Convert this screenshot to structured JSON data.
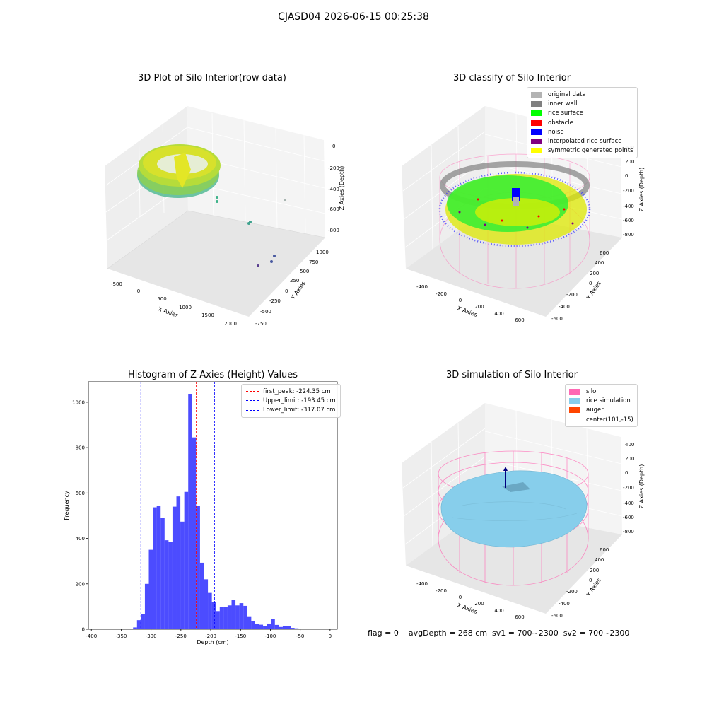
{
  "figure": {
    "suptitle": "CJASD04 2026-06-15 00:25:38",
    "status_line": "flag = 0    avgDepth = 268 cm  sv1 = 700~2300  sv2 = 700~2300"
  },
  "panels": {
    "raw": {
      "title": "3D Plot of Silo Interior(row data)",
      "xlabel": "X Axies",
      "ylabel": "Y Axies",
      "zlabel": "Z Axies (Depth)",
      "xticks": [
        "-500",
        "0",
        "500",
        "1000",
        "1500",
        "2000"
      ],
      "yticks": [
        "-750",
        "-500",
        "-250",
        "0",
        "250",
        "500",
        "750",
        "1000"
      ],
      "zticks": [
        "0",
        "-200",
        "-400",
        "-600",
        "-800"
      ]
    },
    "classify": {
      "title": "3D classify of Silo Interior",
      "xlabel": "X Axies",
      "ylabel": "Y Axies",
      "zlabel": "Z Axies (Depth)",
      "xticks": [
        "-400",
        "-200",
        "0",
        "200",
        "400",
        "600"
      ],
      "yticks": [
        "-600",
        "-400",
        "-200",
        "0",
        "200",
        "400",
        "600"
      ],
      "zticks": [
        "400",
        "200",
        "0",
        "-200",
        "-400",
        "-600",
        "-800"
      ],
      "legend": [
        {
          "label": "original data",
          "color": "#b3b3b3"
        },
        {
          "label": "inner wall",
          "color": "#808080"
        },
        {
          "label": "rice surface",
          "color": "#00ff00"
        },
        {
          "label": "obstacle",
          "color": "#ff0000"
        },
        {
          "label": "noise",
          "color": "#0000ff"
        },
        {
          "label": "interpolated rice surface",
          "color": "#800080"
        },
        {
          "label": "symmetric generated points",
          "color": "#ffff00"
        }
      ]
    },
    "simulation": {
      "title": "3D simulation of Silo Interior",
      "xlabel": "X Axies",
      "ylabel": "Y Axies",
      "zlabel": "Z Axies (Depth)",
      "xticks": [
        "-400",
        "-200",
        "0",
        "200",
        "400",
        "600"
      ],
      "yticks": [
        "-600",
        "-400",
        "-200",
        "0",
        "200",
        "400",
        "600"
      ],
      "zticks": [
        "400",
        "200",
        "0",
        "-200",
        "-400",
        "-600",
        "-800"
      ],
      "legend": [
        {
          "label": "silo",
          "color": "#ff69b4"
        },
        {
          "label": "rice simulation",
          "color": "#87ceeb"
        },
        {
          "label": "auger",
          "color": "#ff4500"
        },
        {
          "label": "center(101,-15)",
          "color": ""
        }
      ]
    }
  },
  "chart_data": {
    "type": "bar",
    "title": "Histogram of Z-Axies (Height) Values",
    "xlabel": "Depth (cm)",
    "ylabel": "Frequency",
    "xlim": [
      -405,
      12
    ],
    "ylim": [
      0,
      1090
    ],
    "xticks": [
      -400,
      -350,
      -300,
      -250,
      -200,
      -150,
      -100,
      -50,
      0
    ],
    "yticks": [
      0,
      200,
      400,
      600,
      800,
      1000
    ],
    "bar_color": "#0000ff",
    "bin_width": 6.6,
    "bins": [
      {
        "x": -330.1,
        "y": 8
      },
      {
        "x": -323.5,
        "y": 40
      },
      {
        "x": -316.9,
        "y": 68
      },
      {
        "x": -310.3,
        "y": 200
      },
      {
        "x": -303.7,
        "y": 350
      },
      {
        "x": -297.1,
        "y": 537
      },
      {
        "x": -290.5,
        "y": 545
      },
      {
        "x": -283.9,
        "y": 490
      },
      {
        "x": -277.3,
        "y": 392
      },
      {
        "x": -270.7,
        "y": 385
      },
      {
        "x": -264.1,
        "y": 540
      },
      {
        "x": -257.5,
        "y": 585
      },
      {
        "x": -250.9,
        "y": 474
      },
      {
        "x": -244.3,
        "y": 605
      },
      {
        "x": -237.7,
        "y": 1037
      },
      {
        "x": -231.1,
        "y": 845
      },
      {
        "x": -224.5,
        "y": 545
      },
      {
        "x": -217.9,
        "y": 293
      },
      {
        "x": -211.3,
        "y": 220
      },
      {
        "x": -204.7,
        "y": 160
      },
      {
        "x": -198.1,
        "y": 120
      },
      {
        "x": -191.5,
        "y": 80
      },
      {
        "x": -184.9,
        "y": 98
      },
      {
        "x": -178.3,
        "y": 97
      },
      {
        "x": -171.7,
        "y": 105
      },
      {
        "x": -165.1,
        "y": 128
      },
      {
        "x": -158.5,
        "y": 105
      },
      {
        "x": -151.9,
        "y": 115
      },
      {
        "x": -145.3,
        "y": 103
      },
      {
        "x": -138.7,
        "y": 57
      },
      {
        "x": -132.1,
        "y": 37
      },
      {
        "x": -125.5,
        "y": 22
      },
      {
        "x": -118.9,
        "y": 20
      },
      {
        "x": -112.3,
        "y": 15
      },
      {
        "x": -105.7,
        "y": 25
      },
      {
        "x": -99.1,
        "y": 44
      },
      {
        "x": -92.5,
        "y": 19
      },
      {
        "x": -85.9,
        "y": 10
      },
      {
        "x": -79.3,
        "y": 15
      },
      {
        "x": -72.7,
        "y": 13
      },
      {
        "x": -66.1,
        "y": 6
      },
      {
        "x": -59.5,
        "y": 4
      },
      {
        "x": -52.9,
        "y": 2
      }
    ],
    "vlines": [
      {
        "label": "first_peak: -224.35 cm",
        "x": -224.35,
        "color": "#ff0000"
      },
      {
        "label": "Upper_limit: -193.45 cm",
        "x": -193.45,
        "color": "#0000ff"
      },
      {
        "label": "Lower_limit: -317.07 cm",
        "x": -317.07,
        "color": "#0000ff"
      }
    ]
  }
}
